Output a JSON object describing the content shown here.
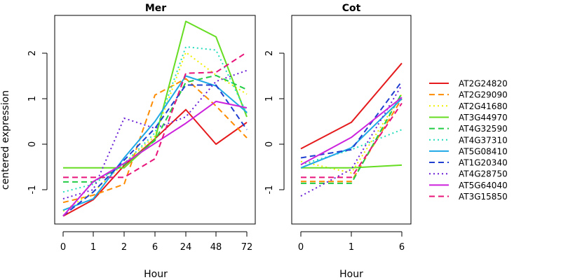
{
  "chart_data": [
    {
      "type": "line",
      "title": "Mer",
      "xlabel": "Hour",
      "ylabel": "centered expression",
      "categories": [
        "0",
        "1",
        "2",
        "6",
        "24",
        "48",
        "72"
      ],
      "y_ticks": [
        "-1",
        "0",
        "1",
        "2"
      ],
      "ylim": [
        -1.7,
        2.8
      ],
      "series": [
        {
          "name": "AT2G24820",
          "values": [
            -1.58,
            -1.22,
            -0.47,
            0.12,
            0.76,
            0.0,
            0.48
          ]
        },
        {
          "name": "AT2G29090",
          "values": [
            -1.28,
            -1.12,
            -0.88,
            1.08,
            1.44,
            0.84,
            0.14
          ]
        },
        {
          "name": "AT2G41680",
          "values": [
            -1.47,
            -1.05,
            -0.42,
            0.18,
            2.02,
            1.52,
            1.1
          ]
        },
        {
          "name": "AT3G44970",
          "values": [
            -0.52,
            -0.52,
            -0.52,
            0.1,
            2.7,
            2.36,
            0.6
          ]
        },
        {
          "name": "AT4G32590",
          "values": [
            -0.83,
            -0.83,
            -0.45,
            0.08,
            1.36,
            1.51,
            1.2
          ]
        },
        {
          "name": "AT4G37310",
          "values": [
            -1.05,
            -0.88,
            -0.43,
            0.25,
            2.14,
            2.07,
            0.68
          ]
        },
        {
          "name": "AT5G08410",
          "values": [
            -1.45,
            -1.2,
            -0.3,
            0.5,
            1.5,
            1.28,
            0.7
          ]
        },
        {
          "name": "AT1G20340",
          "values": [
            -1.57,
            -1.05,
            -0.35,
            0.35,
            1.3,
            1.3,
            0.32
          ]
        },
        {
          "name": "AT4G28750",
          "values": [
            -1.2,
            -1.0,
            0.57,
            0.35,
            0.6,
            1.38,
            1.62
          ]
        },
        {
          "name": "AT5G64040",
          "values": [
            -1.58,
            -0.82,
            -0.42,
            0.02,
            0.46,
            0.94,
            0.8
          ]
        },
        {
          "name": "AT3G15850",
          "values": [
            -0.73,
            -0.73,
            -0.73,
            -0.32,
            1.56,
            1.58,
            2.02
          ]
        }
      ]
    },
    {
      "type": "line",
      "title": "Cot",
      "xlabel": "Hour",
      "categories": [
        "0",
        "1",
        "6"
      ],
      "y_ticks": [
        "-1",
        "0",
        "1",
        "2"
      ],
      "ylim": [
        -1.7,
        2.8
      ],
      "series": [
        {
          "name": "AT2G24820",
          "values": [
            -0.1,
            0.48,
            1.78
          ]
        },
        {
          "name": "AT2G29090",
          "values": [
            -0.82,
            -0.82,
            1.0
          ]
        },
        {
          "name": "AT2G41680",
          "values": [
            -0.38,
            -0.63,
            1.1
          ]
        },
        {
          "name": "AT3G44970",
          "values": [
            -0.52,
            -0.52,
            -0.46
          ]
        },
        {
          "name": "AT4G32590",
          "values": [
            -0.86,
            -0.86,
            1.12
          ]
        },
        {
          "name": "AT4G37310",
          "values": [
            -0.45,
            -0.12,
            0.32
          ]
        },
        {
          "name": "AT5G08410",
          "values": [
            -0.52,
            -0.08,
            1.0
          ]
        },
        {
          "name": "AT1G20340",
          "values": [
            -0.3,
            -0.12,
            1.38
          ]
        },
        {
          "name": "AT4G28750",
          "values": [
            -1.14,
            -0.55,
            1.3
          ]
        },
        {
          "name": "AT5G64040",
          "values": [
            -0.45,
            0.15,
            1.03
          ]
        },
        {
          "name": "AT3G15850",
          "values": [
            -0.73,
            -0.73,
            0.9
          ]
        }
      ]
    }
  ],
  "legend": {
    "placement": "right",
    "entries": [
      {
        "name": "AT2G24820",
        "color": "#e41a1c",
        "dash": "solid"
      },
      {
        "name": "AT2G29090",
        "color": "#ff8c00",
        "dash": "dashed"
      },
      {
        "name": "AT2G41680",
        "color": "#f0f000",
        "dash": "dotted"
      },
      {
        "name": "AT3G44970",
        "color": "#66dd22",
        "dash": "solid"
      },
      {
        "name": "AT4G32590",
        "color": "#22cc44",
        "dash": "dashed"
      },
      {
        "name": "AT4G37310",
        "color": "#22ddbb",
        "dash": "dotted"
      },
      {
        "name": "AT5G08410",
        "color": "#1ea8e6",
        "dash": "solid"
      },
      {
        "name": "AT1G20340",
        "color": "#1f3fd0",
        "dash": "dashed"
      },
      {
        "name": "AT4G28750",
        "color": "#6a1fd6",
        "dash": "dotted"
      },
      {
        "name": "AT5G64040",
        "color": "#cc22dd",
        "dash": "solid"
      },
      {
        "name": "AT3G15850",
        "color": "#e8147a",
        "dash": "dashed"
      }
    ]
  }
}
